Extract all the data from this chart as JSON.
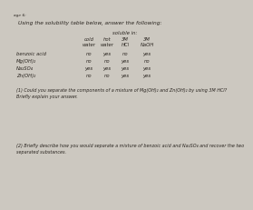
{
  "title_line": "Using the solubility table below, answer the following:",
  "header_soluble": "soluble in:",
  "col_headers_line1": [
    "cold",
    "hot",
    "3M",
    "3M"
  ],
  "col_headers_line2": [
    "water",
    "water",
    "HCl",
    "NaOH"
  ],
  "row_labels": [
    "benzoic acid",
    "Mg(OH)₂",
    "Na₂SO₄",
    "Zn(OH)₂"
  ],
  "table_data": [
    [
      "no",
      "yes",
      "no",
      "yes"
    ],
    [
      "no",
      "no",
      "yes",
      "no"
    ],
    [
      "yes",
      "yes",
      "yes",
      "yes"
    ],
    [
      "no",
      "no",
      "yes",
      "yes"
    ]
  ],
  "question1": "(1) Could you separate the components of a mixture of Mg(OH)₂ and Zn(OH)₂ by using 3M HCl?\nBriefly explain your answer.",
  "question2": "(2) Briefly describe how you would separate a mixture of benzoic acid and Na₂SO₄ and recover the two\nseparated substances.",
  "bg_color": "#ccc8c0",
  "text_color": "#2a2520",
  "page_label": "age 6:"
}
